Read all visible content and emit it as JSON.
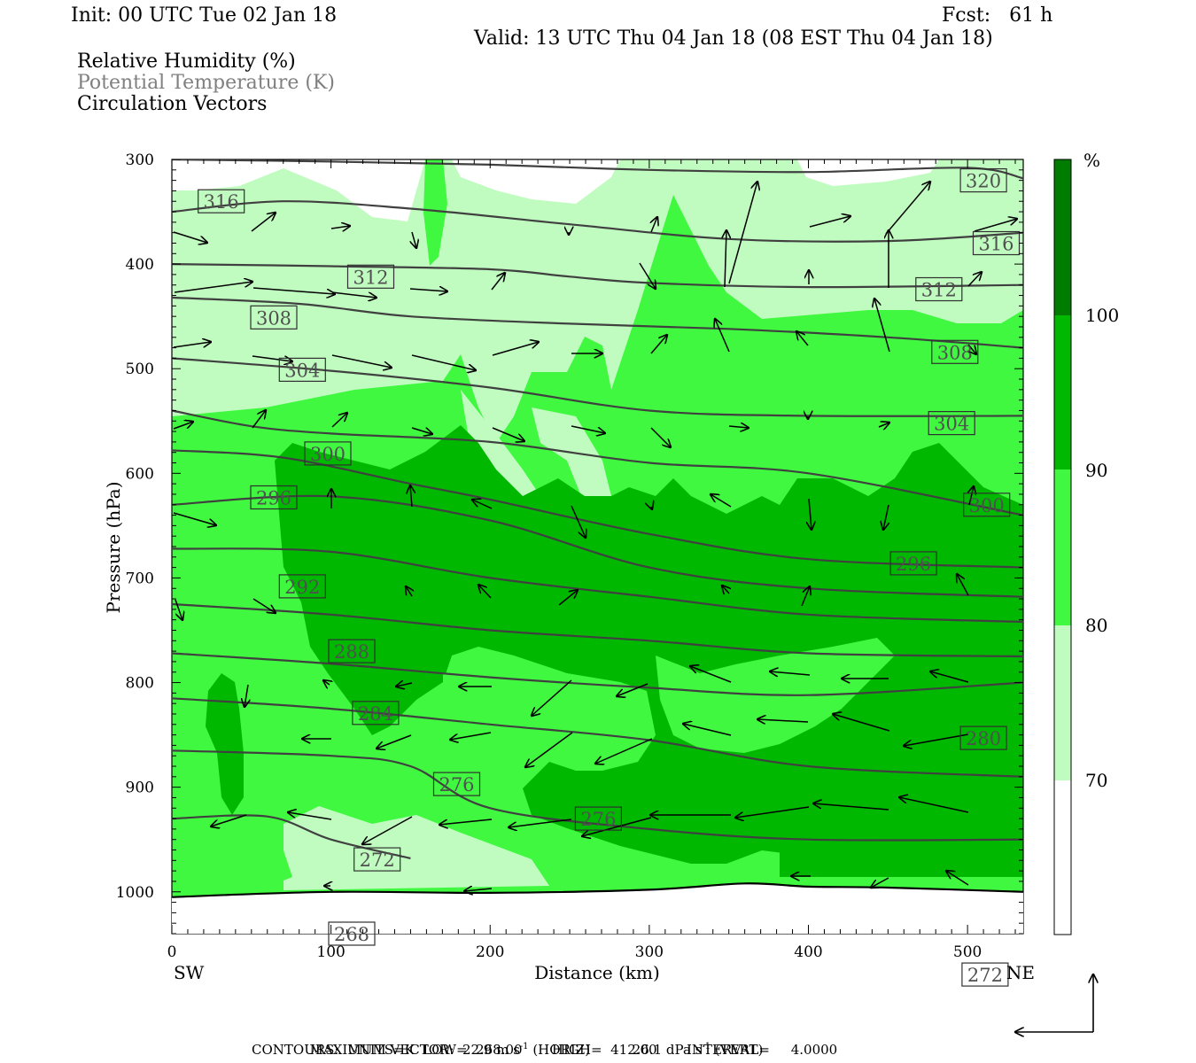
{
  "header": {
    "init": "Init: 00 UTC Tue 02 Jan 18",
    "fcst": "Fcst:   61 h",
    "valid": "Valid: 13 UTC Thu 04 Jan 18 (08 EST Thu 04 Jan 18)"
  },
  "legend_titles": {
    "rh": "Relative Humidity (%)",
    "theta": "Potential Temperature (K)",
    "vectors": "Circulation Vectors"
  },
  "colors": {
    "rh_70_80": "#c0fcc0",
    "rh_80_90": "#40f840",
    "rh_90_100": "#00b800",
    "rh_100_plus": "#007c00",
    "contour": "#404040",
    "theta_label": "#505050"
  },
  "chart_data": {
    "type": "contour-cross-section",
    "xlabel": "Distance (km)",
    "ylabel": "Pressure (hPa)",
    "xlim": [
      0,
      535
    ],
    "ylim": [
      1040,
      300
    ],
    "x_ticks": [
      "0",
      "100",
      "200",
      "300",
      "400",
      "500"
    ],
    "y_ticks": [
      "300",
      "400",
      "500",
      "600",
      "700",
      "800",
      "900",
      "1000"
    ],
    "x_left_label": "SW",
    "x_right_label": "NE",
    "colorbar": {
      "unit": "%",
      "levels": [
        "70",
        "80",
        "90",
        "100"
      ]
    },
    "theta_contours": [
      {
        "label": "320",
        "points": [
          [
            0,
            300
          ],
          [
            100,
            302
          ],
          [
            200,
            305
          ],
          [
            300,
            310
          ],
          [
            400,
            312
          ],
          [
            500,
            308
          ],
          [
            535,
            318
          ]
        ]
      },
      {
        "label": "316",
        "points": [
          [
            0,
            350
          ],
          [
            70,
            340
          ],
          [
            150,
            347
          ],
          [
            250,
            362
          ],
          [
            350,
            376
          ],
          [
            450,
            378
          ],
          [
            535,
            370
          ]
        ]
      },
      {
        "label": "312",
        "points": [
          [
            0,
            400
          ],
          [
            100,
            402
          ],
          [
            200,
            405
          ],
          [
            250,
            412
          ],
          [
            300,
            418
          ],
          [
            400,
            422
          ],
          [
            535,
            420
          ]
        ]
      },
      {
        "label": "308",
        "points": [
          [
            0,
            432
          ],
          [
            80,
            438
          ],
          [
            150,
            450
          ],
          [
            250,
            457
          ],
          [
            350,
            462
          ],
          [
            450,
            470
          ],
          [
            535,
            480
          ]
        ]
      },
      {
        "label": "304",
        "points": [
          [
            0,
            490
          ],
          [
            100,
            502
          ],
          [
            200,
            518
          ],
          [
            300,
            540
          ],
          [
            400,
            545
          ],
          [
            535,
            545
          ]
        ]
      },
      {
        "label": "300",
        "points": [
          [
            0,
            540
          ],
          [
            50,
            555
          ],
          [
            100,
            562
          ],
          [
            200,
            570
          ],
          [
            300,
            590
          ],
          [
            400,
            600
          ],
          [
            535,
            640
          ]
        ]
      },
      {
        "label": "296",
        "points": [
          [
            0,
            578
          ],
          [
            70,
            585
          ],
          [
            150,
            610
          ],
          [
            200,
            625
          ],
          [
            300,
            658
          ],
          [
            400,
            682
          ],
          [
            535,
            690
          ]
        ]
      },
      {
        "label": "292",
        "points": [
          [
            0,
            630
          ],
          [
            100,
            622
          ],
          [
            200,
            645
          ],
          [
            300,
            690
          ],
          [
            400,
            710
          ],
          [
            535,
            718
          ]
        ]
      },
      {
        "label": "288",
        "points": [
          [
            0,
            672
          ],
          [
            100,
            675
          ],
          [
            200,
            700
          ],
          [
            300,
            718
          ],
          [
            400,
            735
          ],
          [
            535,
            742
          ]
        ]
      },
      {
        "label": "284",
        "points": [
          [
            0,
            725
          ],
          [
            100,
            735
          ],
          [
            200,
            750
          ],
          [
            300,
            760
          ],
          [
            400,
            772
          ],
          [
            535,
            775
          ]
        ]
      },
      {
        "label": "280",
        "points": [
          [
            0,
            772
          ],
          [
            100,
            782
          ],
          [
            200,
            795
          ],
          [
            300,
            805
          ],
          [
            400,
            812
          ],
          [
            535,
            800
          ]
        ]
      },
      {
        "label": "276",
        "points": [
          [
            0,
            815
          ],
          [
            100,
            825
          ],
          [
            200,
            840
          ],
          [
            300,
            855
          ],
          [
            400,
            880
          ],
          [
            535,
            890
          ]
        ]
      },
      {
        "label": "272",
        "points": [
          [
            0,
            865
          ],
          [
            100,
            870
          ],
          [
            150,
            880
          ],
          [
            200,
            920
          ],
          [
            300,
            940
          ],
          [
            400,
            950
          ],
          [
            535,
            950
          ]
        ]
      },
      {
        "label": "268",
        "points": [
          [
            0,
            930
          ],
          [
            60,
            928
          ],
          [
            100,
            950
          ],
          [
            150,
            968
          ]
        ]
      }
    ],
    "theta_labels": [
      {
        "text": "316",
        "x": 31,
        "p": 340
      },
      {
        "text": "320",
        "x": 510,
        "p": 320
      },
      {
        "text": "316",
        "x": 518,
        "p": 380
      },
      {
        "text": "312",
        "x": 125,
        "p": 412
      },
      {
        "text": "312",
        "x": 482,
        "p": 424
      },
      {
        "text": "308",
        "x": 64,
        "p": 451
      },
      {
        "text": "308",
        "x": 492,
        "p": 484
      },
      {
        "text": "304",
        "x": 82,
        "p": 501
      },
      {
        "text": "304",
        "x": 490,
        "p": 552
      },
      {
        "text": "300",
        "x": 98,
        "p": 581
      },
      {
        "text": "300",
        "x": 512,
        "p": 630
      },
      {
        "text": "296",
        "x": 64,
        "p": 623
      },
      {
        "text": "296",
        "x": 466,
        "p": 686
      },
      {
        "text": "292",
        "x": 82,
        "p": 708
      },
      {
        "text": "288",
        "x": 113,
        "p": 770
      },
      {
        "text": "284",
        "x": 128,
        "p": 829
      },
      {
        "text": "280",
        "x": 510,
        "p": 853
      },
      {
        "text": "276",
        "x": 179,
        "p": 897
      },
      {
        "text": "276",
        "x": 268,
        "p": 930
      },
      {
        "text": "272",
        "x": 129,
        "p": 969
      },
      {
        "text": "272",
        "x": 511,
        "p": 1079
      },
      {
        "text": "268",
        "x": 113,
        "p": 1040
      }
    ],
    "terrain_surface": [
      [
        0,
        1005
      ],
      [
        100,
        1000
      ],
      [
        200,
        1001
      ],
      [
        300,
        998
      ],
      [
        360,
        992
      ],
      [
        400,
        995
      ],
      [
        450,
        996
      ],
      [
        535,
        1000
      ]
    ]
  },
  "footer": {
    "max_vector_label": "MAXIMUM VECTOR:",
    "horiz_value": "22.9 m s",
    "horiz_unit": "(HORIZ)",
    "vert_value": "26.1 dPa s",
    "vert_unit": "(VERT)",
    "exponent": "-1",
    "contours_line": "CONTOURS:  UNITS=K  LOW=  268.00       HIGH=  412.00       INTERVAL=     4.0000"
  }
}
